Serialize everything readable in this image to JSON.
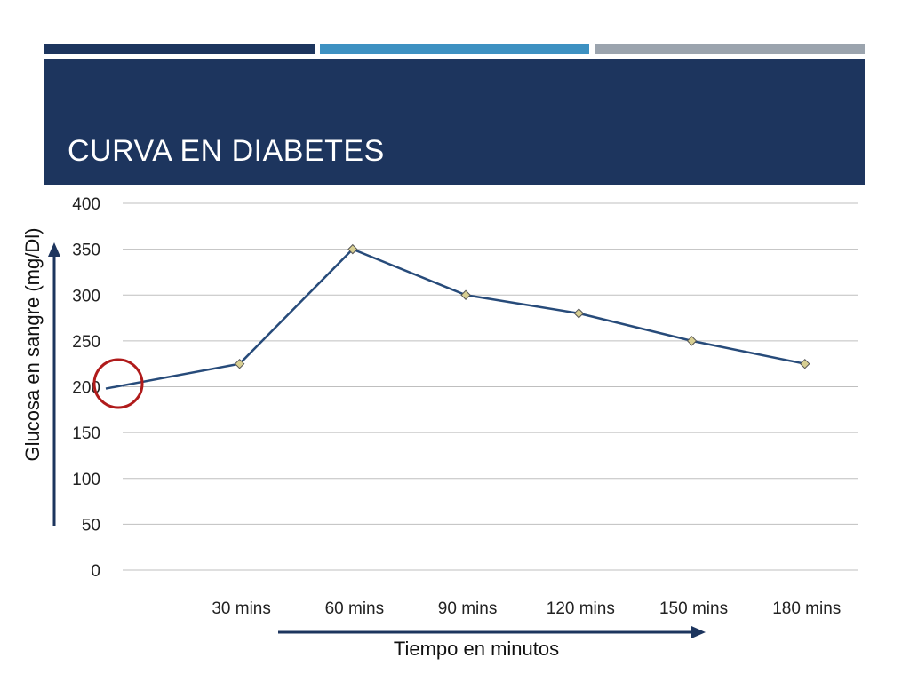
{
  "slide": {
    "title": "CURVA EN DIABETES"
  },
  "colors": {
    "bar_dark": "#1d355e",
    "bar_light": "#3d91c2",
    "bar_gray": "#9ba4ae",
    "banner": "#1d355e",
    "line": "#274b7a",
    "marker_fill": "#d8cf92",
    "marker_stroke": "#555555",
    "grid": "#bfbfbf",
    "arrow": "#1d355e",
    "highlight_circle": "#b01b1b"
  },
  "annotations": {
    "y_arrow_label": "Glucosa en sangre (mg/Dl)",
    "x_arrow_label": "Tiempo en minutos",
    "highlight": "red circle around starting value"
  },
  "chart_data": {
    "type": "line",
    "title": "",
    "ylabel": "Glucosa en sangre (mg/Dl)",
    "xlabel": "Tiempo en minutos",
    "ylim": [
      0,
      400
    ],
    "yticks": [
      0,
      50,
      100,
      150,
      200,
      250,
      300,
      350,
      400
    ],
    "grid": true,
    "legend": "none",
    "categories": [
      "30 mins",
      "60 mins",
      "90 mins",
      "120 mins",
      "150 mins",
      "180 mins"
    ],
    "start_value": 198,
    "series": [
      {
        "values": [
          225,
          350,
          300,
          280,
          250,
          225
        ]
      }
    ]
  }
}
